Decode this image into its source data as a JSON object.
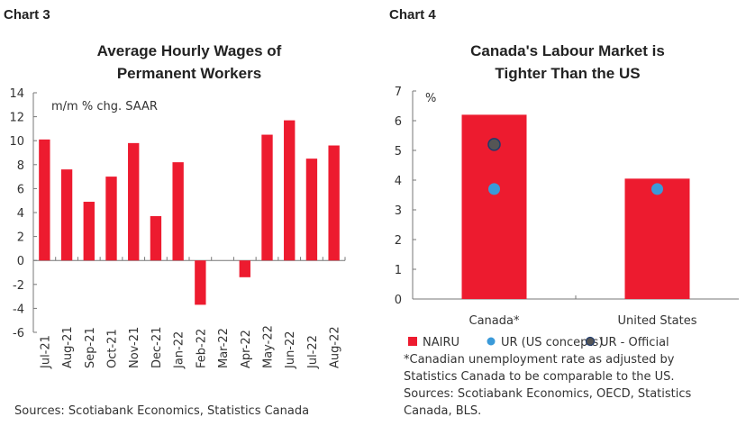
{
  "chart_data": [
    {
      "type": "bar",
      "label": "Chart 3",
      "title": "Average Hourly Wages of Permanent Workers",
      "title_lines": [
        "Average Hourly Wages of",
        "Permanent Workers"
      ],
      "unit_note": "m/m % chg. SAAR",
      "categories": [
        "Jul-21",
        "Aug-21",
        "Sep-21",
        "Oct-21",
        "Nov-21",
        "Dec-21",
        "Jan-22",
        "Feb-22",
        "Mar-22",
        "Apr-22",
        "May-22",
        "Jun-22",
        "Jul-22",
        "Aug-22"
      ],
      "values": [
        10.1,
        7.6,
        4.9,
        7.0,
        9.8,
        3.7,
        8.2,
        -3.7,
        0,
        -1.4,
        10.5,
        11.7,
        8.5,
        9.6
      ],
      "ylim": [
        -6,
        14
      ],
      "yticks": [
        -6,
        -4,
        -2,
        0,
        2,
        4,
        6,
        8,
        10,
        12,
        14
      ],
      "color": "#ED1B2F",
      "source": "Sources: Scotiabank Economics, Statistics Canada"
    },
    {
      "type": "bar",
      "label": "Chart 4",
      "title": "Canada's Labour Market is Tighter Than the US",
      "title_lines": [
        "Canada's Labour Market is",
        "Tighter Than the US"
      ],
      "unit_note": "%",
      "categories": [
        "Canada*",
        "United States"
      ],
      "series": [
        {
          "name": "NAIRU",
          "kind": "bar",
          "color": "#ED1B2F",
          "values": [
            6.2,
            4.05
          ]
        },
        {
          "name": "UR (US concepts)",
          "kind": "dot",
          "color": "#3A9AD9",
          "values": [
            3.7,
            3.7
          ]
        },
        {
          "name": "UR - Official",
          "kind": "dot",
          "color": "#555555",
          "values": [
            5.2,
            null
          ]
        }
      ],
      "ylim": [
        0,
        7
      ],
      "yticks": [
        0,
        1,
        2,
        3,
        4,
        5,
        6,
        7
      ],
      "footnotes": [
        "*Canadian unemployment rate as adjusted by",
        "Statistics Canada to be comparable to the US.",
        "Sources: Scotiabank Economics, OECD, Statistics",
        "Canada, BLS."
      ]
    }
  ]
}
